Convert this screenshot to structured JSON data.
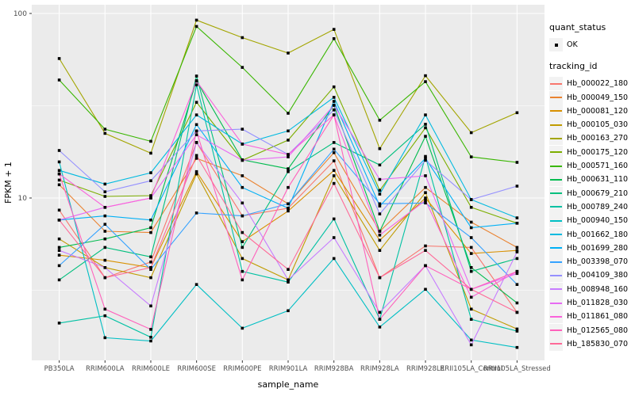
{
  "figure": {
    "y_axis_title": "FPKM + 1",
    "x_axis_title": "sample_name",
    "y_tick_labels": [
      "100",
      "10"
    ]
  },
  "legend": {
    "quant_status_title": "quant_status",
    "quant_status_items": [
      {
        "label": "OK",
        "marker": "black-point"
      }
    ],
    "tracking_id_title": "tracking_id"
  },
  "colors": {
    "panel_bg": "#EBEBEB",
    "grid_major": "#FFFFFF",
    "grid_minor": "#FFFFFF",
    "tick": "#333333",
    "tick_label": "#4D4D4D",
    "axis_title": "#000000",
    "point": "#000000",
    "legend_key_bg": "#F2F2F2"
  },
  "chart_data": {
    "type": "line",
    "x_type": "categorical",
    "y_scale": "log10",
    "xlabel": "sample_name",
    "ylabel": "FPKM + 1",
    "ylim": [
      1.3,
      115
    ],
    "y_ticks": [
      10,
      100
    ],
    "y_minor_ticks": [
      3.1623,
      31.623
    ],
    "grid": true,
    "legend_position": "right",
    "point_shape": "square",
    "categories": [
      "PB350LA",
      "RRIM600LA",
      "RRIM600LE",
      "RRIM600SE",
      "RRIM600PE",
      "RRIM901LA",
      "RRIM928BA",
      "RRIM928LA",
      "RRIM928LE",
      "RRII105LA_Control",
      "RRII105LA_Stressed"
    ],
    "series": [
      {
        "name": "Hb_000022_180",
        "color": "#F8766D",
        "values": [
          8.6,
          3.7,
          4.5,
          20,
          8.0,
          8.8,
          15.9,
          3.7,
          5.5,
          5.4,
          2.4
        ]
      },
      {
        "name": "Hb_000049_150",
        "color": "#EA8331",
        "values": [
          11.8,
          6.6,
          6.5,
          16.4,
          13.2,
          9.3,
          17.6,
          6.6,
          11.4,
          7.4,
          5.4
        ]
      },
      {
        "name": "Hb_000081_120",
        "color": "#D89000",
        "values": [
          4.9,
          4.6,
          4.2,
          13.9,
          5.8,
          8.5,
          14.1,
          5.9,
          10.0,
          5.0,
          5.2
        ]
      },
      {
        "name": "Hb_000105_030",
        "color": "#C09B00",
        "values": [
          6.0,
          4.2,
          3.7,
          13.5,
          4.7,
          3.6,
          13.2,
          5.2,
          10.7,
          2.5,
          1.95
        ]
      },
      {
        "name": "Hb_000163_270",
        "color": "#A3A500",
        "values": [
          57,
          22.4,
          17.5,
          92,
          74,
          61,
          82,
          18.5,
          46,
          22.6,
          29
        ]
      },
      {
        "name": "Hb_000175_120",
        "color": "#7CAE00",
        "values": [
          12.5,
          10.2,
          10.3,
          33,
          16,
          20.6,
          40,
          11,
          24,
          8.9,
          7.3
        ]
      },
      {
        "name": "Hb_000571_160",
        "color": "#39B600",
        "values": [
          43.6,
          23.6,
          20.3,
          85,
          51,
          28.8,
          73,
          26.4,
          42.7,
          16.7,
          15.6
        ]
      },
      {
        "name": "Hb_000631_110",
        "color": "#00BB4E",
        "values": [
          5.4,
          6.0,
          6.9,
          43.2,
          16.1,
          14.4,
          31.8,
          6.6,
          21.6,
          4.2,
          2.7
        ]
      },
      {
        "name": "Hb_000679_210",
        "color": "#00BF7D",
        "values": [
          3.6,
          5.4,
          4.8,
          45.8,
          5.4,
          13.9,
          20,
          15.1,
          25.1,
          4.0,
          4.7
        ]
      },
      {
        "name": "Hb_000789_240",
        "color": "#00C1A3",
        "values": [
          2.1,
          2.3,
          1.76,
          41,
          4.0,
          3.5,
          7.7,
          2.2,
          16.8,
          2.2,
          1.9
        ]
      },
      {
        "name": "Hb_000940_150",
        "color": "#00BFC4",
        "values": [
          15.7,
          1.75,
          1.68,
          3.4,
          1.97,
          2.45,
          4.7,
          2.0,
          3.2,
          1.7,
          1.55
        ]
      },
      {
        "name": "Hb_001662_180",
        "color": "#00BAE0",
        "values": [
          14.1,
          11.9,
          13.7,
          28.2,
          19.6,
          23.1,
          35.1,
          10.5,
          28.2,
          9.8,
          7.8
        ]
      },
      {
        "name": "Hb_001699_280",
        "color": "#00B0F6",
        "values": [
          7.6,
          8.0,
          7.6,
          25,
          11.4,
          8.8,
          33.4,
          9.05,
          16.4,
          6.9,
          7.3
        ]
      },
      {
        "name": "Hb_003398_070",
        "color": "#35A2FF",
        "values": [
          4.3,
          7.2,
          4.1,
          8.3,
          8.0,
          9.3,
          18.4,
          9.3,
          9.4,
          6.1,
          3.4
        ]
      },
      {
        "name": "Hb_004109_380",
        "color": "#9590FF",
        "values": [
          18.1,
          10.8,
          12.4,
          23.1,
          23.6,
          17.2,
          30,
          8.2,
          16,
          9.8,
          11.6
        ]
      },
      {
        "name": "Hb_008948_160",
        "color": "#C77CFF",
        "values": [
          5.2,
          4.2,
          2.6,
          20,
          9.4,
          3.6,
          6.1,
          2.4,
          4.3,
          1.6,
          5.1
        ]
      },
      {
        "name": "Hb_011828_030",
        "color": "#E76BF3",
        "values": [
          7.6,
          8.9,
          10.0,
          22,
          16,
          16.7,
          31.8,
          12.6,
          13.2,
          3.2,
          3.9
        ]
      },
      {
        "name": "Hb_011861_080",
        "color": "#FA62DB",
        "values": [
          13.5,
          8.9,
          10.0,
          43,
          19.6,
          17.2,
          28.2,
          6.3,
          9.7,
          2.9,
          4.0
        ]
      },
      {
        "name": "Hb_012565_080",
        "color": "#FF62BC",
        "values": [
          13.5,
          2.5,
          1.94,
          23,
          3.6,
          11.4,
          28.2,
          2.2,
          4.3,
          3.2,
          4.0
        ]
      },
      {
        "name": "Hb_185830_070",
        "color": "#FF6A98",
        "values": [
          7.6,
          3.7,
          4.2,
          17,
          6.5,
          4.1,
          12,
          3.7,
          5.2,
          3.2,
          2.4
        ]
      }
    ]
  }
}
